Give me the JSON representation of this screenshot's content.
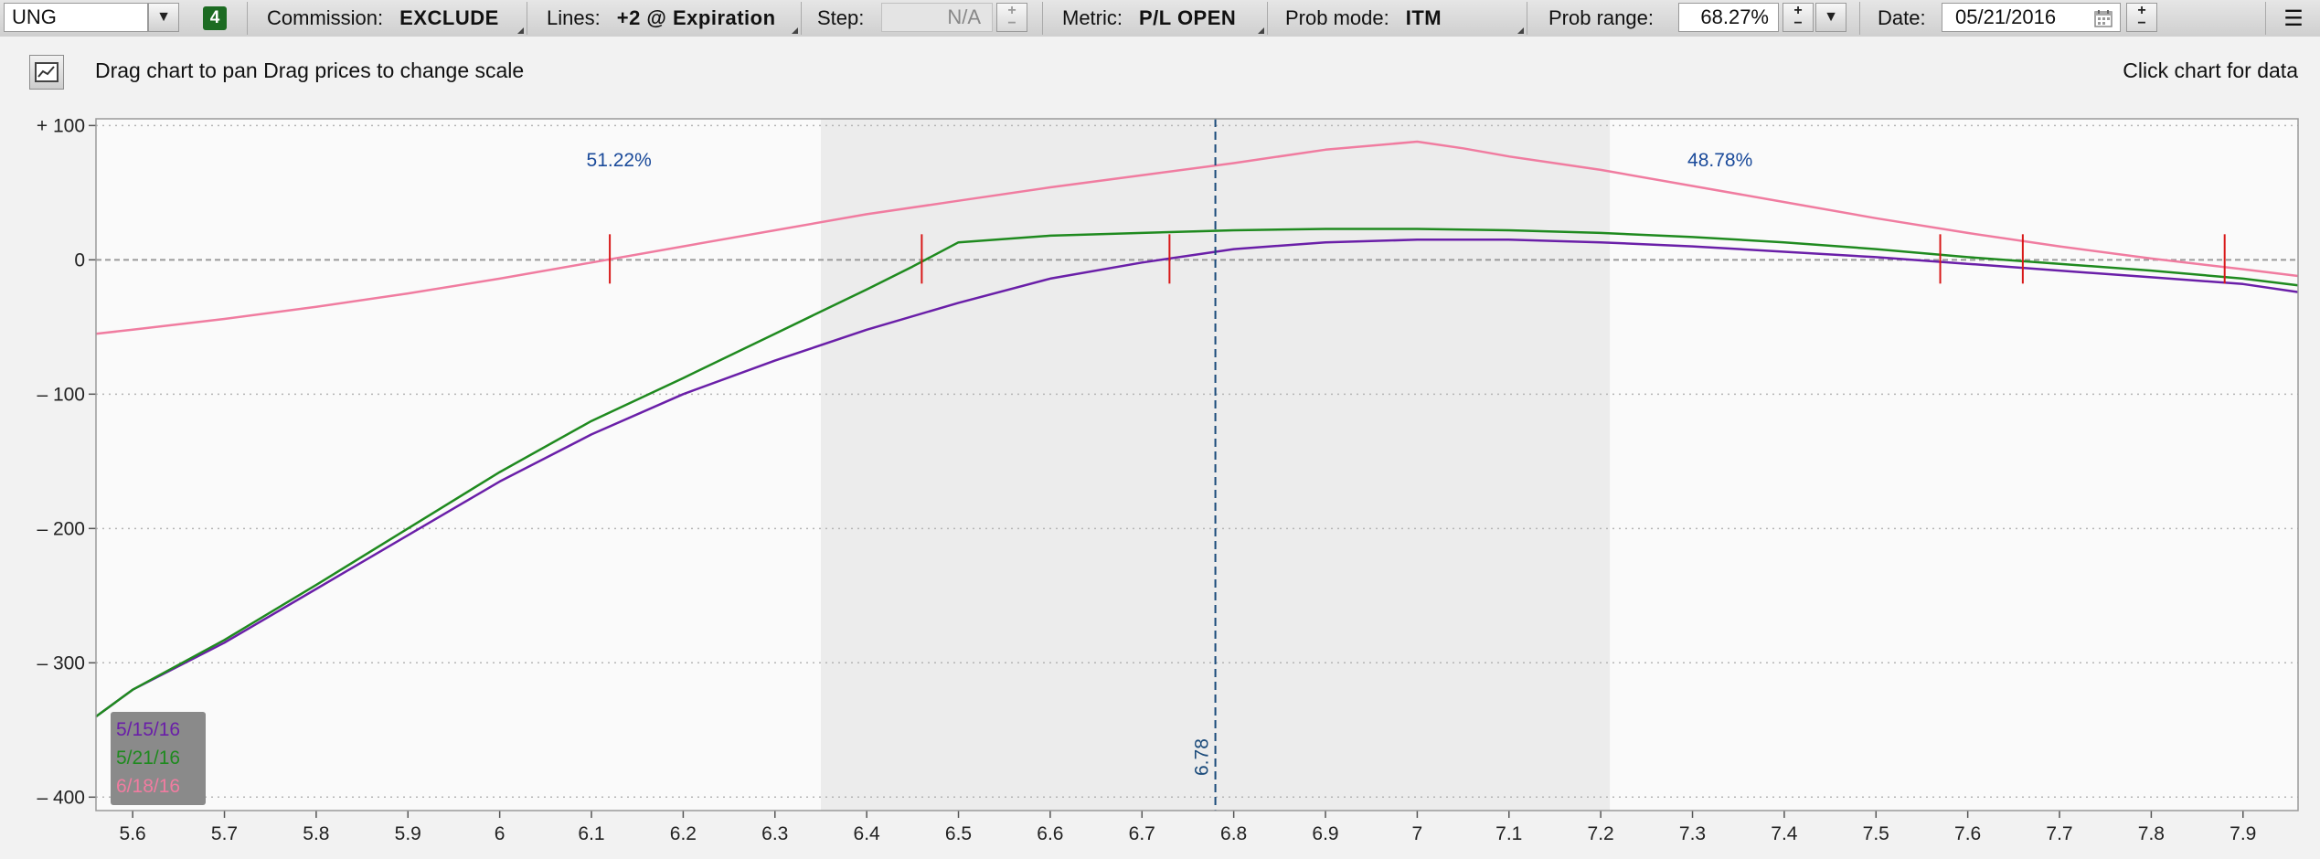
{
  "toolbar": {
    "symbol": "UNG",
    "badge": "4",
    "commission_label": "Commission:",
    "commission_value": "EXCLUDE",
    "lines_label": "Lines:",
    "lines_value": "+2 @ Expiration",
    "step_label": "Step:",
    "step_value": "N/A",
    "metric_label": "Metric:",
    "metric_value": "P/L OPEN",
    "prob_mode_label": "Prob mode:",
    "prob_mode_value": "ITM",
    "prob_range_label": "Prob range:",
    "prob_range_value": "68.27%",
    "date_label": "Date:",
    "date_value": "05/21/2016",
    "plus_glyph": "+",
    "minus_glyph": "−",
    "dropdown_glyph": "▼",
    "menu_glyph": "☰"
  },
  "infobar": {
    "hint": "Drag chart to pan Drag prices to change scale",
    "click_hint": "Click chart for data"
  },
  "colors": {
    "series_0": "#6a1fa8",
    "series_1": "#1f8a1f",
    "series_2": "#f07ca0",
    "breakeven": "#d81818",
    "price_line": "#1a4a7a",
    "prob_text": "#1a4a9a",
    "shaded_band": "#ececec"
  },
  "chart_data": {
    "type": "line",
    "xlim": [
      5.56,
      7.96
    ],
    "ylim": [
      -410,
      105
    ],
    "x_ticks": [
      5.6,
      5.7,
      5.8,
      5.9,
      6.0,
      6.1,
      6.2,
      6.3,
      6.4,
      6.5,
      6.6,
      6.7,
      6.8,
      6.9,
      7.0,
      7.1,
      7.2,
      7.3,
      7.4,
      7.5,
      7.6,
      7.7,
      7.8,
      7.9
    ],
    "x_tick_labels": [
      "5.6",
      "5.7",
      "5.8",
      "5.9",
      "6",
      "6.1",
      "6.2",
      "6.3",
      "6.4",
      "6.5",
      "6.6",
      "6.7",
      "6.8",
      "6.9",
      "7",
      "7.1",
      "7.2",
      "7.3",
      "7.4",
      "7.5",
      "7.6",
      "7.7",
      "7.8",
      "7.9"
    ],
    "y_ticks": [
      100,
      0,
      -100,
      -200,
      -300,
      -400
    ],
    "y_tick_labels": [
      "+ 100",
      "0",
      "– 100",
      "– 200",
      "– 300",
      "– 400"
    ],
    "grid": "horizontal dotted",
    "legend_position": "bottom-left",
    "current_price": 6.78,
    "current_price_label": "6.78",
    "prob_band": [
      6.35,
      7.21
    ],
    "prob_left": "51.22%",
    "prob_right": "48.78%",
    "breakeven_marks": [
      6.12,
      6.46,
      6.73,
      7.57,
      7.66,
      7.88
    ],
    "series": [
      {
        "name": "5/15/16",
        "x": [
          5.56,
          5.6,
          5.7,
          5.8,
          5.9,
          6.0,
          6.1,
          6.2,
          6.3,
          6.4,
          6.5,
          6.6,
          6.7,
          6.8,
          6.9,
          7.0,
          7.1,
          7.2,
          7.3,
          7.4,
          7.5,
          7.6,
          7.7,
          7.8,
          7.9,
          7.96
        ],
        "y": [
          -340,
          -320,
          -285,
          -245,
          -205,
          -165,
          -130,
          -100,
          -75,
          -52,
          -32,
          -14,
          -2,
          8,
          13,
          15,
          15,
          13,
          10,
          6,
          2,
          -3,
          -8,
          -13,
          -18,
          -24
        ]
      },
      {
        "name": "5/21/16",
        "x": [
          5.56,
          5.6,
          5.7,
          5.8,
          5.9,
          6.0,
          6.1,
          6.2,
          6.3,
          6.4,
          6.45,
          6.5,
          6.6,
          6.7,
          6.8,
          6.9,
          7.0,
          7.1,
          7.2,
          7.3,
          7.4,
          7.5,
          7.6,
          7.7,
          7.8,
          7.9,
          7.96
        ],
        "y": [
          -340,
          -320,
          -283,
          -242,
          -200,
          -158,
          -120,
          -88,
          -55,
          -22,
          -5,
          13,
          18,
          20,
          22,
          23,
          23,
          22,
          20,
          17,
          13,
          8,
          2,
          -3,
          -8,
          -14,
          -19
        ]
      },
      {
        "name": "6/18/16",
        "x": [
          5.56,
          5.6,
          5.7,
          5.8,
          5.9,
          6.0,
          6.1,
          6.2,
          6.3,
          6.4,
          6.5,
          6.6,
          6.7,
          6.8,
          6.9,
          7.0,
          7.05,
          7.1,
          7.2,
          7.3,
          7.4,
          7.5,
          7.6,
          7.7,
          7.8,
          7.9,
          7.96
        ],
        "y": [
          -55,
          -52,
          -44,
          -35,
          -25,
          -14,
          -2,
          10,
          22,
          34,
          44,
          54,
          63,
          72,
          82,
          88,
          83,
          77,
          67,
          55,
          43,
          31,
          20,
          10,
          1,
          -7,
          -12
        ]
      }
    ]
  }
}
